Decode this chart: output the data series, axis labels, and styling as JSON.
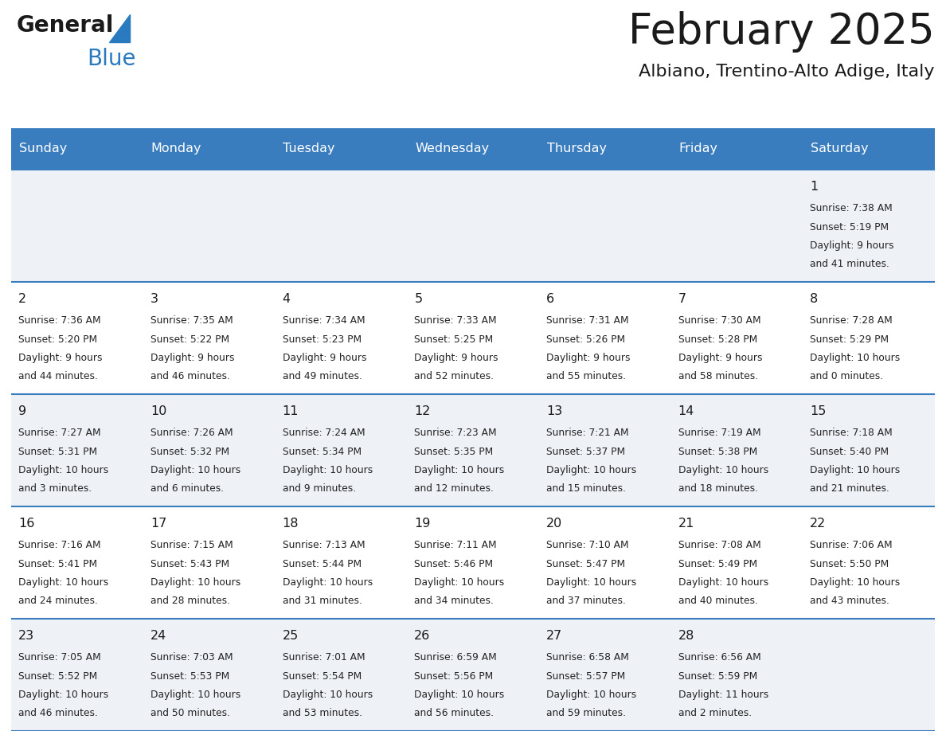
{
  "title": "February 2025",
  "subtitle": "Albiano, Trentino-Alto Adige, Italy",
  "days_of_week": [
    "Sunday",
    "Monday",
    "Tuesday",
    "Wednesday",
    "Thursday",
    "Friday",
    "Saturday"
  ],
  "header_bg": "#3a7dbf",
  "header_text": "#ffffff",
  "cell_bg_odd": "#eef2f7",
  "cell_bg_even": "#ffffff",
  "row_line_color": "#3a7dbf",
  "text_color": "#1a1a1a",
  "day_number_color": "#1a1a1a",
  "info_color": "#222222",
  "logo_general_color": "#1a1a1a",
  "logo_blue_color": "#2a7abf",
  "calendar": [
    [
      null,
      null,
      null,
      null,
      null,
      null,
      {
        "day": 1,
        "sunrise": "7:38 AM",
        "sunset": "5:19 PM",
        "daylight": "9 hours and 41 minutes."
      }
    ],
    [
      {
        "day": 2,
        "sunrise": "7:36 AM",
        "sunset": "5:20 PM",
        "daylight": "9 hours and 44 minutes."
      },
      {
        "day": 3,
        "sunrise": "7:35 AM",
        "sunset": "5:22 PM",
        "daylight": "9 hours and 46 minutes."
      },
      {
        "day": 4,
        "sunrise": "7:34 AM",
        "sunset": "5:23 PM",
        "daylight": "9 hours and 49 minutes."
      },
      {
        "day": 5,
        "sunrise": "7:33 AM",
        "sunset": "5:25 PM",
        "daylight": "9 hours and 52 minutes."
      },
      {
        "day": 6,
        "sunrise": "7:31 AM",
        "sunset": "5:26 PM",
        "daylight": "9 hours and 55 minutes."
      },
      {
        "day": 7,
        "sunrise": "7:30 AM",
        "sunset": "5:28 PM",
        "daylight": "9 hours and 58 minutes."
      },
      {
        "day": 8,
        "sunrise": "7:28 AM",
        "sunset": "5:29 PM",
        "daylight": "10 hours and 0 minutes."
      }
    ],
    [
      {
        "day": 9,
        "sunrise": "7:27 AM",
        "sunset": "5:31 PM",
        "daylight": "10 hours and 3 minutes."
      },
      {
        "day": 10,
        "sunrise": "7:26 AM",
        "sunset": "5:32 PM",
        "daylight": "10 hours and 6 minutes."
      },
      {
        "day": 11,
        "sunrise": "7:24 AM",
        "sunset": "5:34 PM",
        "daylight": "10 hours and 9 minutes."
      },
      {
        "day": 12,
        "sunrise": "7:23 AM",
        "sunset": "5:35 PM",
        "daylight": "10 hours and 12 minutes."
      },
      {
        "day": 13,
        "sunrise": "7:21 AM",
        "sunset": "5:37 PM",
        "daylight": "10 hours and 15 minutes."
      },
      {
        "day": 14,
        "sunrise": "7:19 AM",
        "sunset": "5:38 PM",
        "daylight": "10 hours and 18 minutes."
      },
      {
        "day": 15,
        "sunrise": "7:18 AM",
        "sunset": "5:40 PM",
        "daylight": "10 hours and 21 minutes."
      }
    ],
    [
      {
        "day": 16,
        "sunrise": "7:16 AM",
        "sunset": "5:41 PM",
        "daylight": "10 hours and 24 minutes."
      },
      {
        "day": 17,
        "sunrise": "7:15 AM",
        "sunset": "5:43 PM",
        "daylight": "10 hours and 28 minutes."
      },
      {
        "day": 18,
        "sunrise": "7:13 AM",
        "sunset": "5:44 PM",
        "daylight": "10 hours and 31 minutes."
      },
      {
        "day": 19,
        "sunrise": "7:11 AM",
        "sunset": "5:46 PM",
        "daylight": "10 hours and 34 minutes."
      },
      {
        "day": 20,
        "sunrise": "7:10 AM",
        "sunset": "5:47 PM",
        "daylight": "10 hours and 37 minutes."
      },
      {
        "day": 21,
        "sunrise": "7:08 AM",
        "sunset": "5:49 PM",
        "daylight": "10 hours and 40 minutes."
      },
      {
        "day": 22,
        "sunrise": "7:06 AM",
        "sunset": "5:50 PM",
        "daylight": "10 hours and 43 minutes."
      }
    ],
    [
      {
        "day": 23,
        "sunrise": "7:05 AM",
        "sunset": "5:52 PM",
        "daylight": "10 hours and 46 minutes."
      },
      {
        "day": 24,
        "sunrise": "7:03 AM",
        "sunset": "5:53 PM",
        "daylight": "10 hours and 50 minutes."
      },
      {
        "day": 25,
        "sunrise": "7:01 AM",
        "sunset": "5:54 PM",
        "daylight": "10 hours and 53 minutes."
      },
      {
        "day": 26,
        "sunrise": "6:59 AM",
        "sunset": "5:56 PM",
        "daylight": "10 hours and 56 minutes."
      },
      {
        "day": 27,
        "sunrise": "6:58 AM",
        "sunset": "5:57 PM",
        "daylight": "10 hours and 59 minutes."
      },
      {
        "day": 28,
        "sunrise": "6:56 AM",
        "sunset": "5:59 PM",
        "daylight": "11 hours and 2 minutes."
      },
      null
    ]
  ]
}
